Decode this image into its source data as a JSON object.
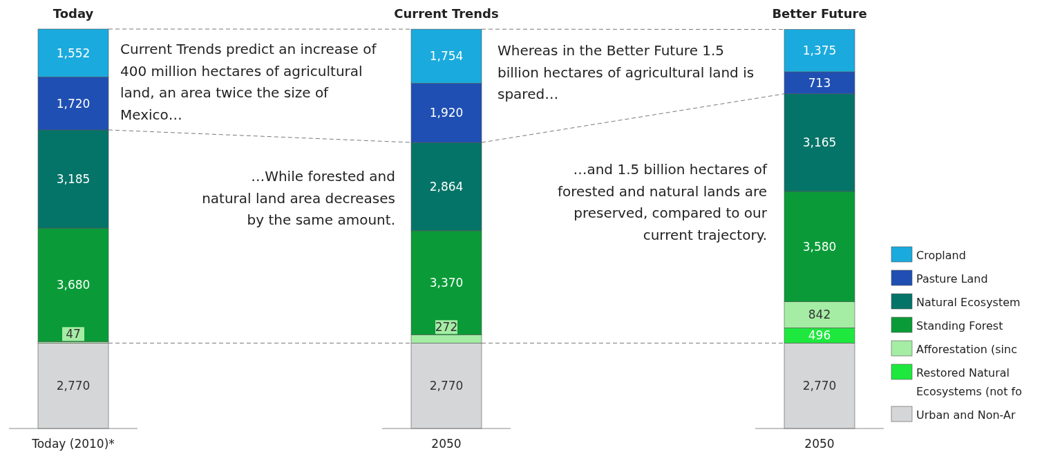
{
  "chart_data": {
    "type": "bar",
    "stacked": true,
    "legend": "right",
    "categories": [
      "Today (2010)*",
      "2050",
      "2050"
    ],
    "series": [
      {
        "name": "Urban and Non-Ar",
        "color": "#d5d6d8",
        "values": [
          2770,
          2770,
          2770
        ],
        "value_labels": [
          "2,770",
          "2,770",
          "2,770"
        ]
      },
      {
        "name": "Restored Natural\nEcosystems (not fo",
        "color": "#1ee83e",
        "values": [
          null,
          null,
          496
        ],
        "value_labels": [
          null,
          null,
          "496"
        ]
      },
      {
        "name": "Afforestation (sinc",
        "color": "#a5eca5",
        "values": [
          47,
          272,
          842
        ],
        "value_labels": [
          "47",
          "272",
          "842"
        ]
      },
      {
        "name": "Standing Forest",
        "color": "#0a9b38",
        "values": [
          3680,
          3370,
          3580
        ],
        "value_labels": [
          "3,680",
          "3,370",
          "3,580"
        ]
      },
      {
        "name": "Natural Ecosystem",
        "color": "#057468",
        "values": [
          3185,
          2864,
          3165
        ],
        "value_labels": [
          "3,185",
          "2,864",
          "3,165"
        ]
      },
      {
        "name": "Pasture Land",
        "color": "#1f4fb3",
        "values": [
          1720,
          1920,
          713
        ],
        "value_labels": [
          "1,720",
          "1,920",
          "713"
        ]
      },
      {
        "name": "Cropland",
        "color": "#1aaadd",
        "values": [
          1552,
          1754,
          1375
        ],
        "value_labels": [
          "1,552",
          "1,754",
          "1,375"
        ]
      }
    ],
    "annotations": [
      "Today",
      "Current Trends",
      "Better Future",
      "Current Trends predict an increase of\n400 million hectares of agricultural\nland, an area twice the size of\nMexico…",
      "…While forested and\nnatural land area decreases\nby the same amount.",
      "Whereas in the Better Future 1.5\nbillion hectares of agricultural land is\nspared…",
      "…and 1.5 billion hectares of\nforested and natural lands are\npreserved, compared to our\ncurrent trajectory."
    ]
  }
}
